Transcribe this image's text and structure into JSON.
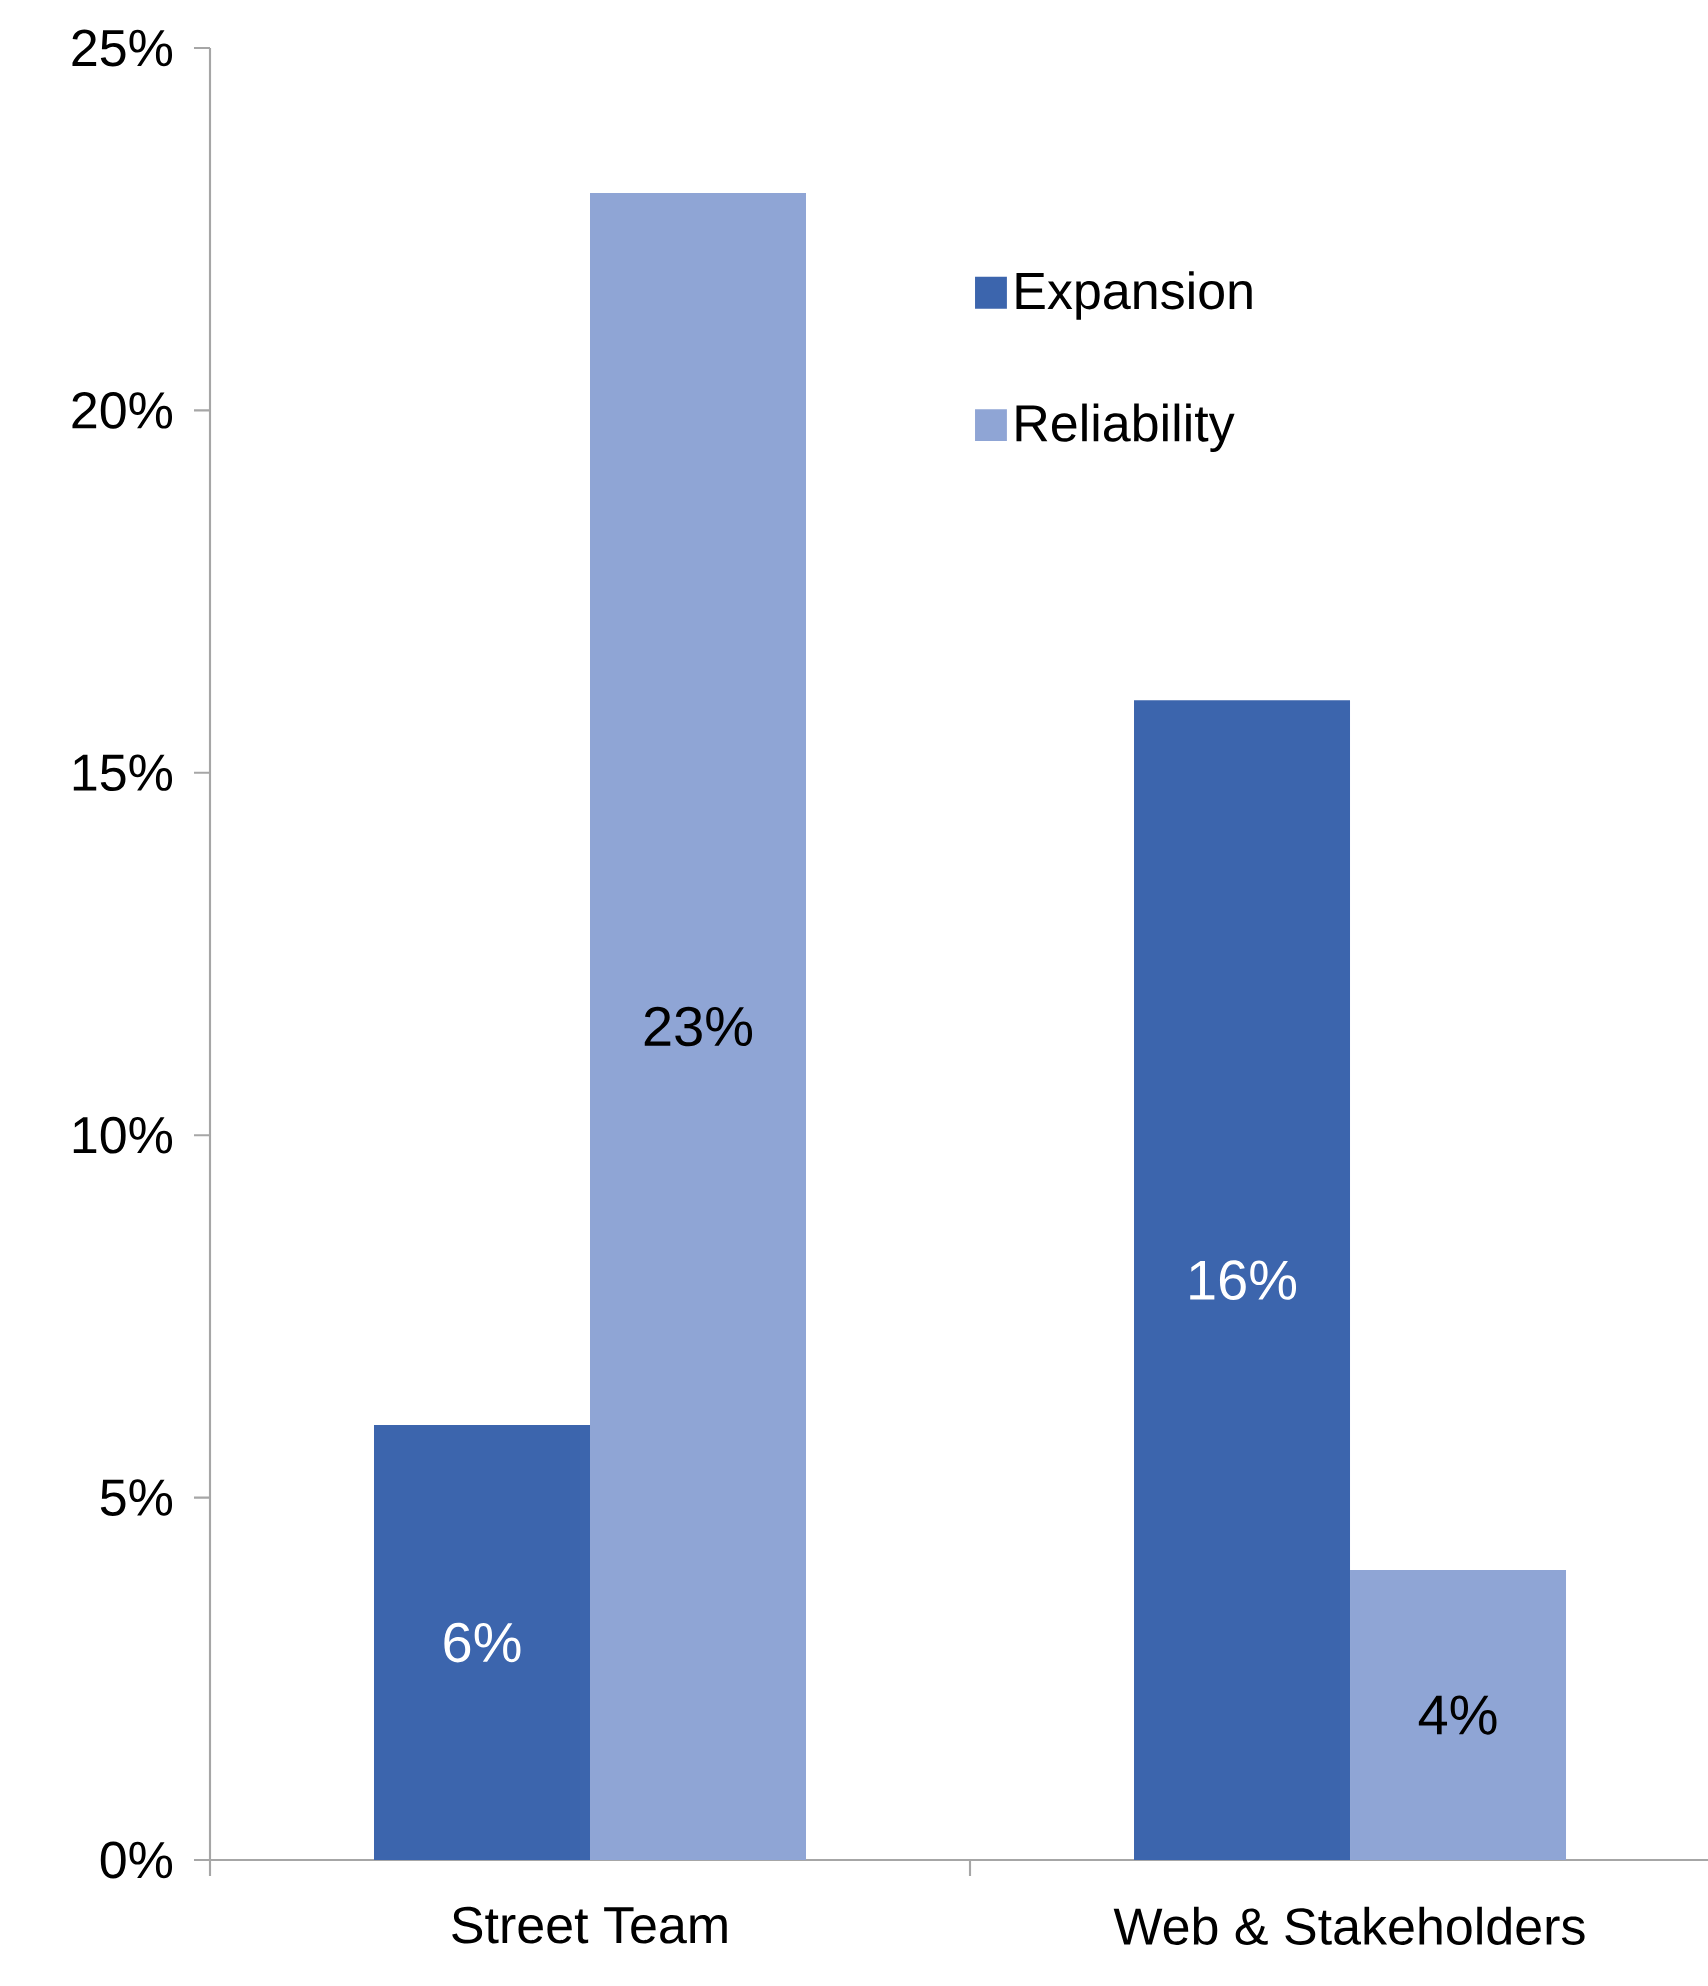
{
  "chart_data": {
    "type": "bar",
    "categories": [
      "Street Team",
      "Web & Stakeholders"
    ],
    "series": [
      {
        "name": "Expansion",
        "color": "#3c65ad",
        "values": [
          6,
          16
        ],
        "value_labels": [
          "6%",
          "16%"
        ]
      },
      {
        "name": "Reliability",
        "color": "#8fa5d5",
        "values": [
          23,
          4
        ],
        "value_labels": [
          "23%",
          "4%"
        ]
      }
    ],
    "ylim": [
      0,
      25
    ],
    "yticks": [
      {
        "value": 0,
        "label": "0%"
      },
      {
        "value": 5,
        "label": "5%"
      },
      {
        "value": 10,
        "label": "10%"
      },
      {
        "value": 15,
        "label": "15%"
      },
      {
        "value": 20,
        "label": "20%"
      },
      {
        "value": 25,
        "label": "25%"
      }
    ],
    "legend": "top right"
  }
}
